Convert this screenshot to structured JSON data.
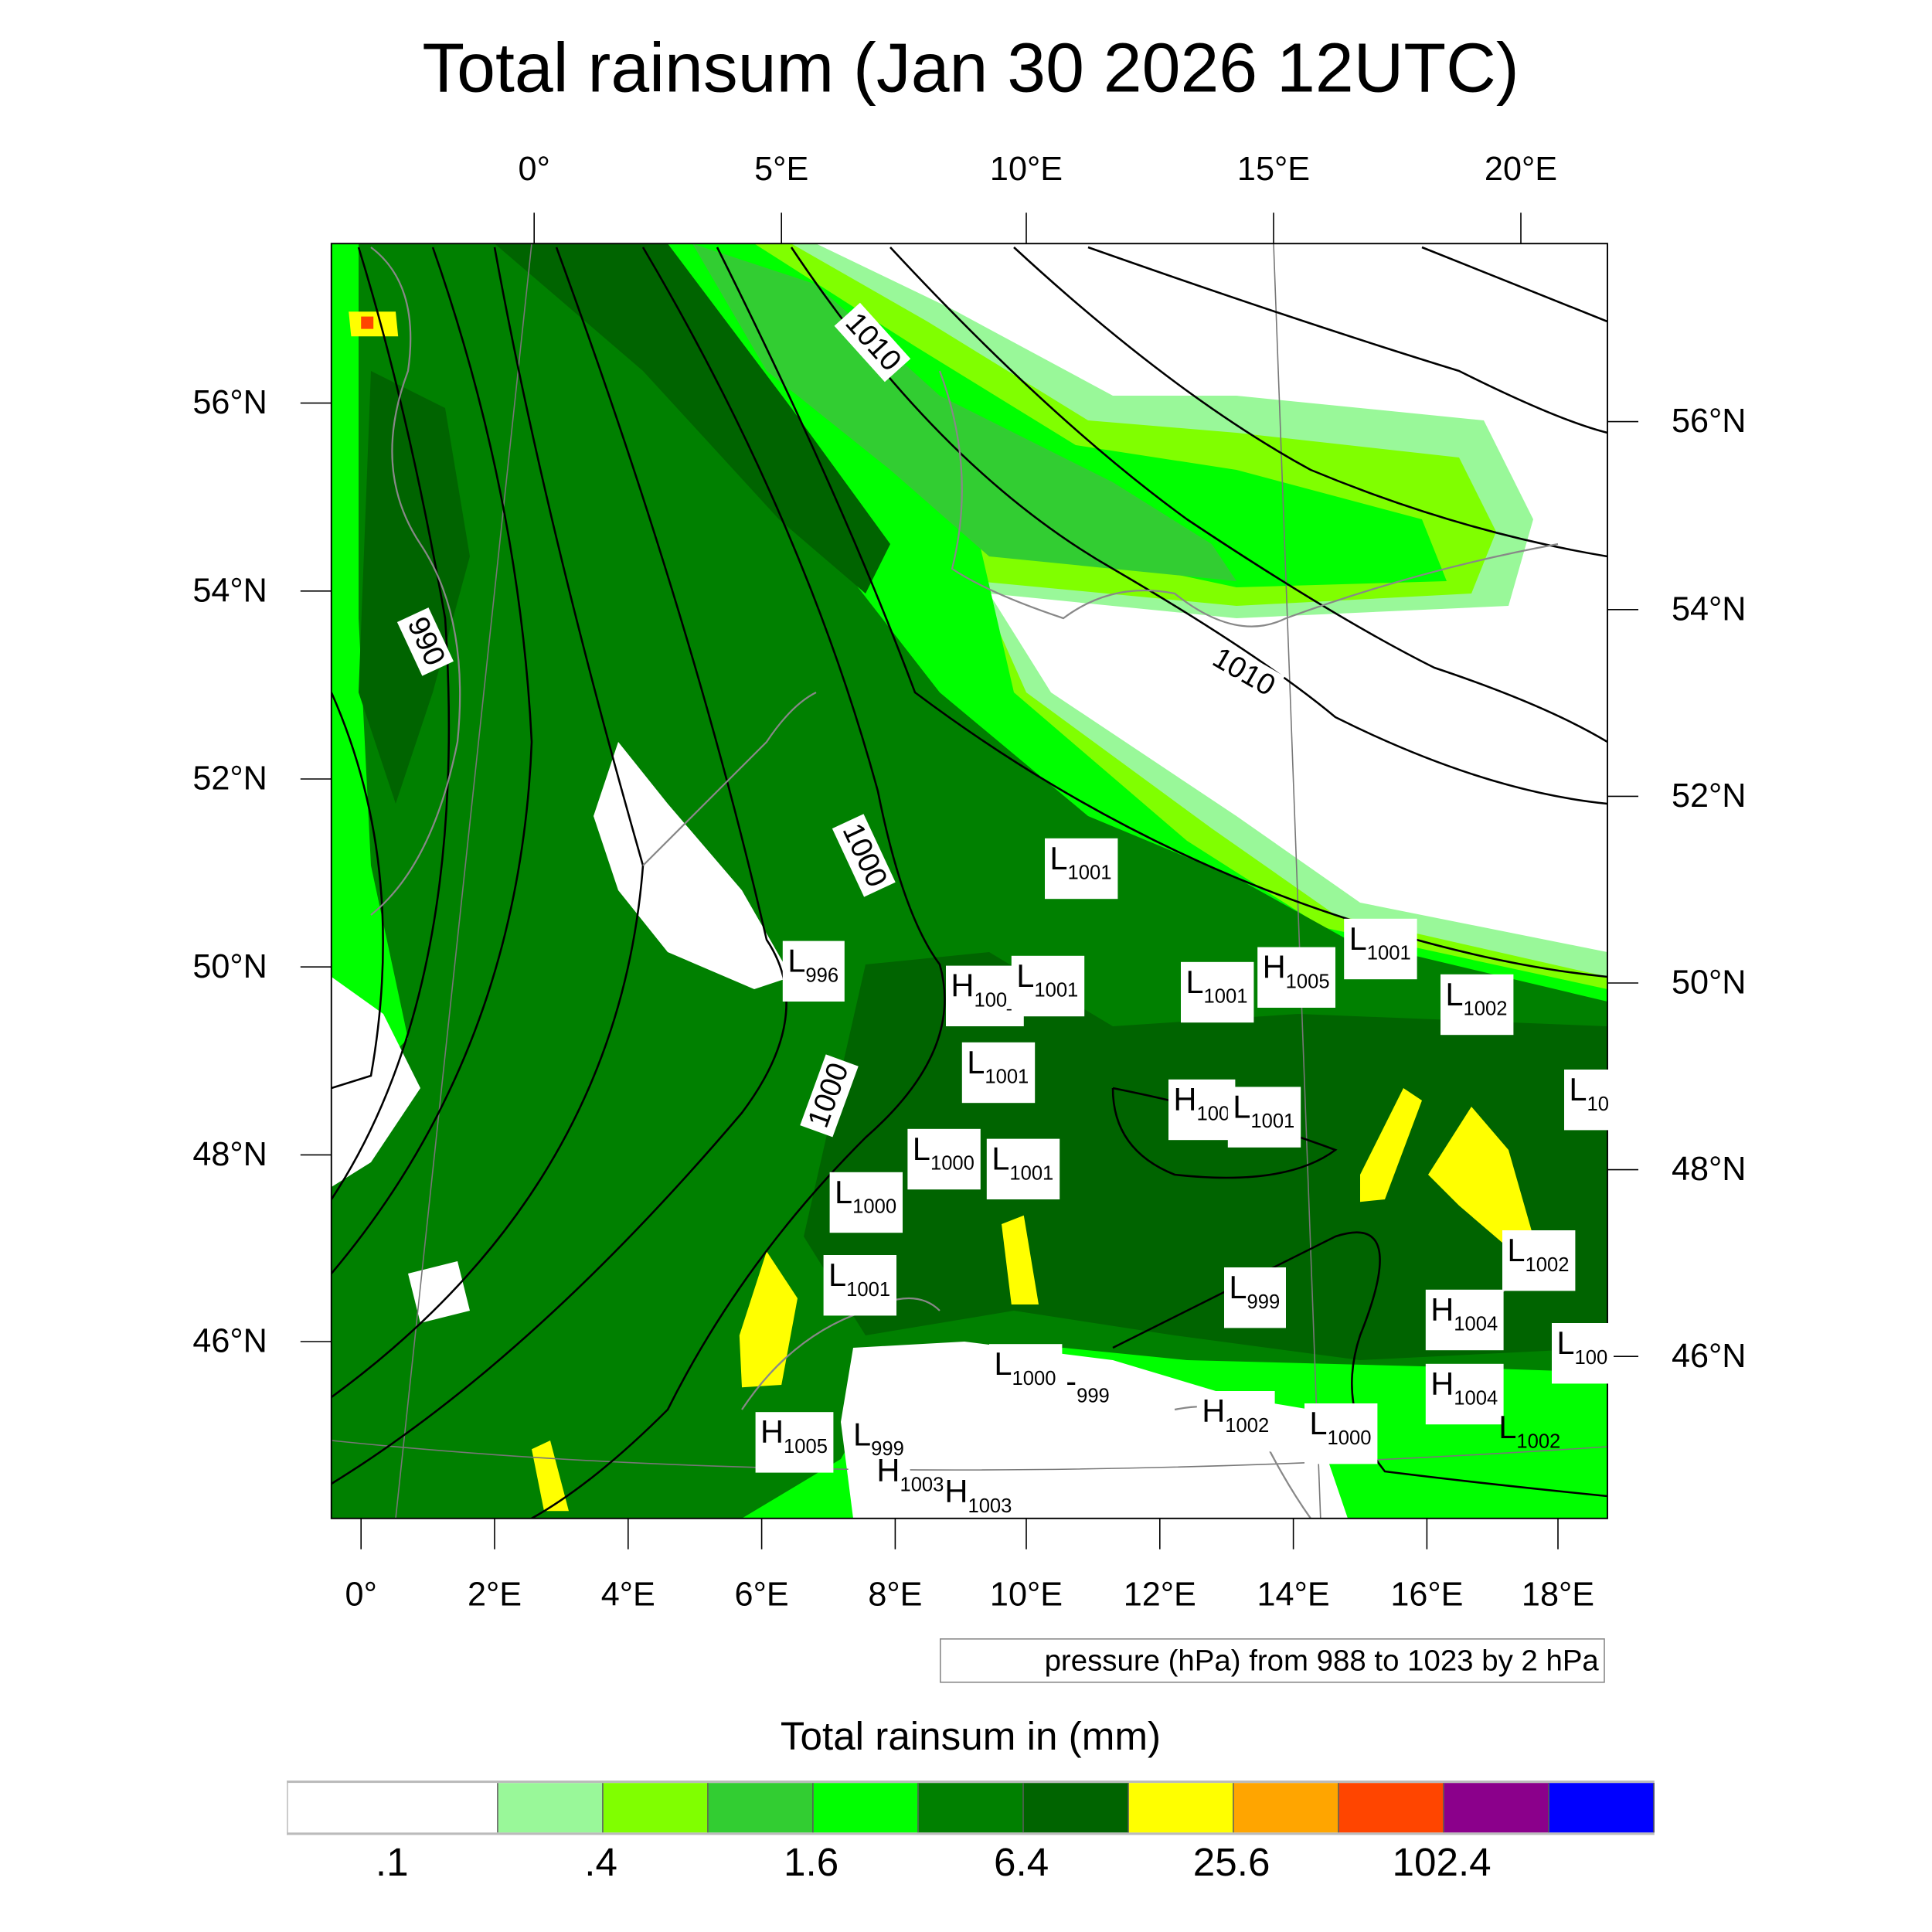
{
  "title": "Total rainsum (Jan 30 2026 12UTC)",
  "axes": {
    "top_lon": [
      "0°",
      "5°E",
      "10°E",
      "15°E",
      "20°E"
    ],
    "left_lat": [
      "56°N",
      "54°N",
      "52°N",
      "50°N",
      "48°N",
      "46°N"
    ],
    "right_lat": [
      "56°N",
      "54°N",
      "52°N",
      "50°N",
      "48°N",
      "46°N"
    ],
    "bottom_lon": [
      "0°",
      "2°E",
      "4°E",
      "6°E",
      "8°E",
      "10°E",
      "12°E",
      "14°E",
      "16°E",
      "18°E"
    ]
  },
  "pressure_note": "pressure (hPa) from 988 to 1023 by 2 hPa",
  "contour_labels": [
    "1010",
    "1010",
    "990",
    "1000",
    "1000"
  ],
  "pressure_centers": [
    {
      "t": "L",
      "v": "1001"
    },
    {
      "t": "L",
      "v": "996"
    },
    {
      "t": "H",
      "v": "100_"
    },
    {
      "t": "L",
      "v": "1001"
    },
    {
      "t": "L",
      "v": "1001"
    },
    {
      "t": "H",
      "v": "1005"
    },
    {
      "t": "L",
      "v": "1001"
    },
    {
      "t": "L",
      "v": "1002"
    },
    {
      "t": "L",
      "v": "1001"
    },
    {
      "t": "H",
      "v": "100"
    },
    {
      "t": "L",
      "v": "1001"
    },
    {
      "t": "L",
      "v": "10"
    },
    {
      "t": "L",
      "v": "1000"
    },
    {
      "t": "L",
      "v": "1001"
    },
    {
      "t": "L",
      "v": "1000"
    },
    {
      "t": "L",
      "v": "1002"
    },
    {
      "t": "L",
      "v": "1001"
    },
    {
      "t": "L",
      "v": "999"
    },
    {
      "t": "H",
      "v": "1004"
    },
    {
      "t": "L",
      "v": "100"
    },
    {
      "t": "L",
      "v": "1000"
    },
    {
      "t": "-",
      "v": "999"
    },
    {
      "t": "H",
      "v": "1004"
    },
    {
      "t": "H",
      "v": "1002"
    },
    {
      "t": "L",
      "v": "1000"
    },
    {
      "t": "L",
      "v": "1002"
    },
    {
      "t": "H",
      "v": "1005"
    },
    {
      "t": "L",
      "v": "999"
    },
    {
      "t": "H",
      "v": "1003"
    },
    {
      "t": "H",
      "v": "1003"
    }
  ],
  "chart_data": {
    "type": "heatmap",
    "title": "Total rainsum (Jan 30 2026 12UTC)",
    "colorbar_title": "Total rainsum in (mm)",
    "colorbar_tick_labels": [
      ".1",
      ".4",
      "1.6",
      "6.4",
      "25.6",
      "102.4"
    ],
    "colorbar_colors": [
      "#ffffff",
      "#ffffff",
      "#99f899",
      "#80ff00",
      "#32cd32",
      "#00ff00",
      "#008000",
      "#006400",
      "#ffff00",
      "#ffa500",
      "#ff4500",
      "#8b008b",
      "#0000ff"
    ],
    "lon_range": [
      -0.5,
      18.5
    ],
    "lat_range": [
      44.5,
      57.5
    ],
    "overlay": "mean sea level pressure contours, 988 to 1023 by 2 hPa"
  }
}
